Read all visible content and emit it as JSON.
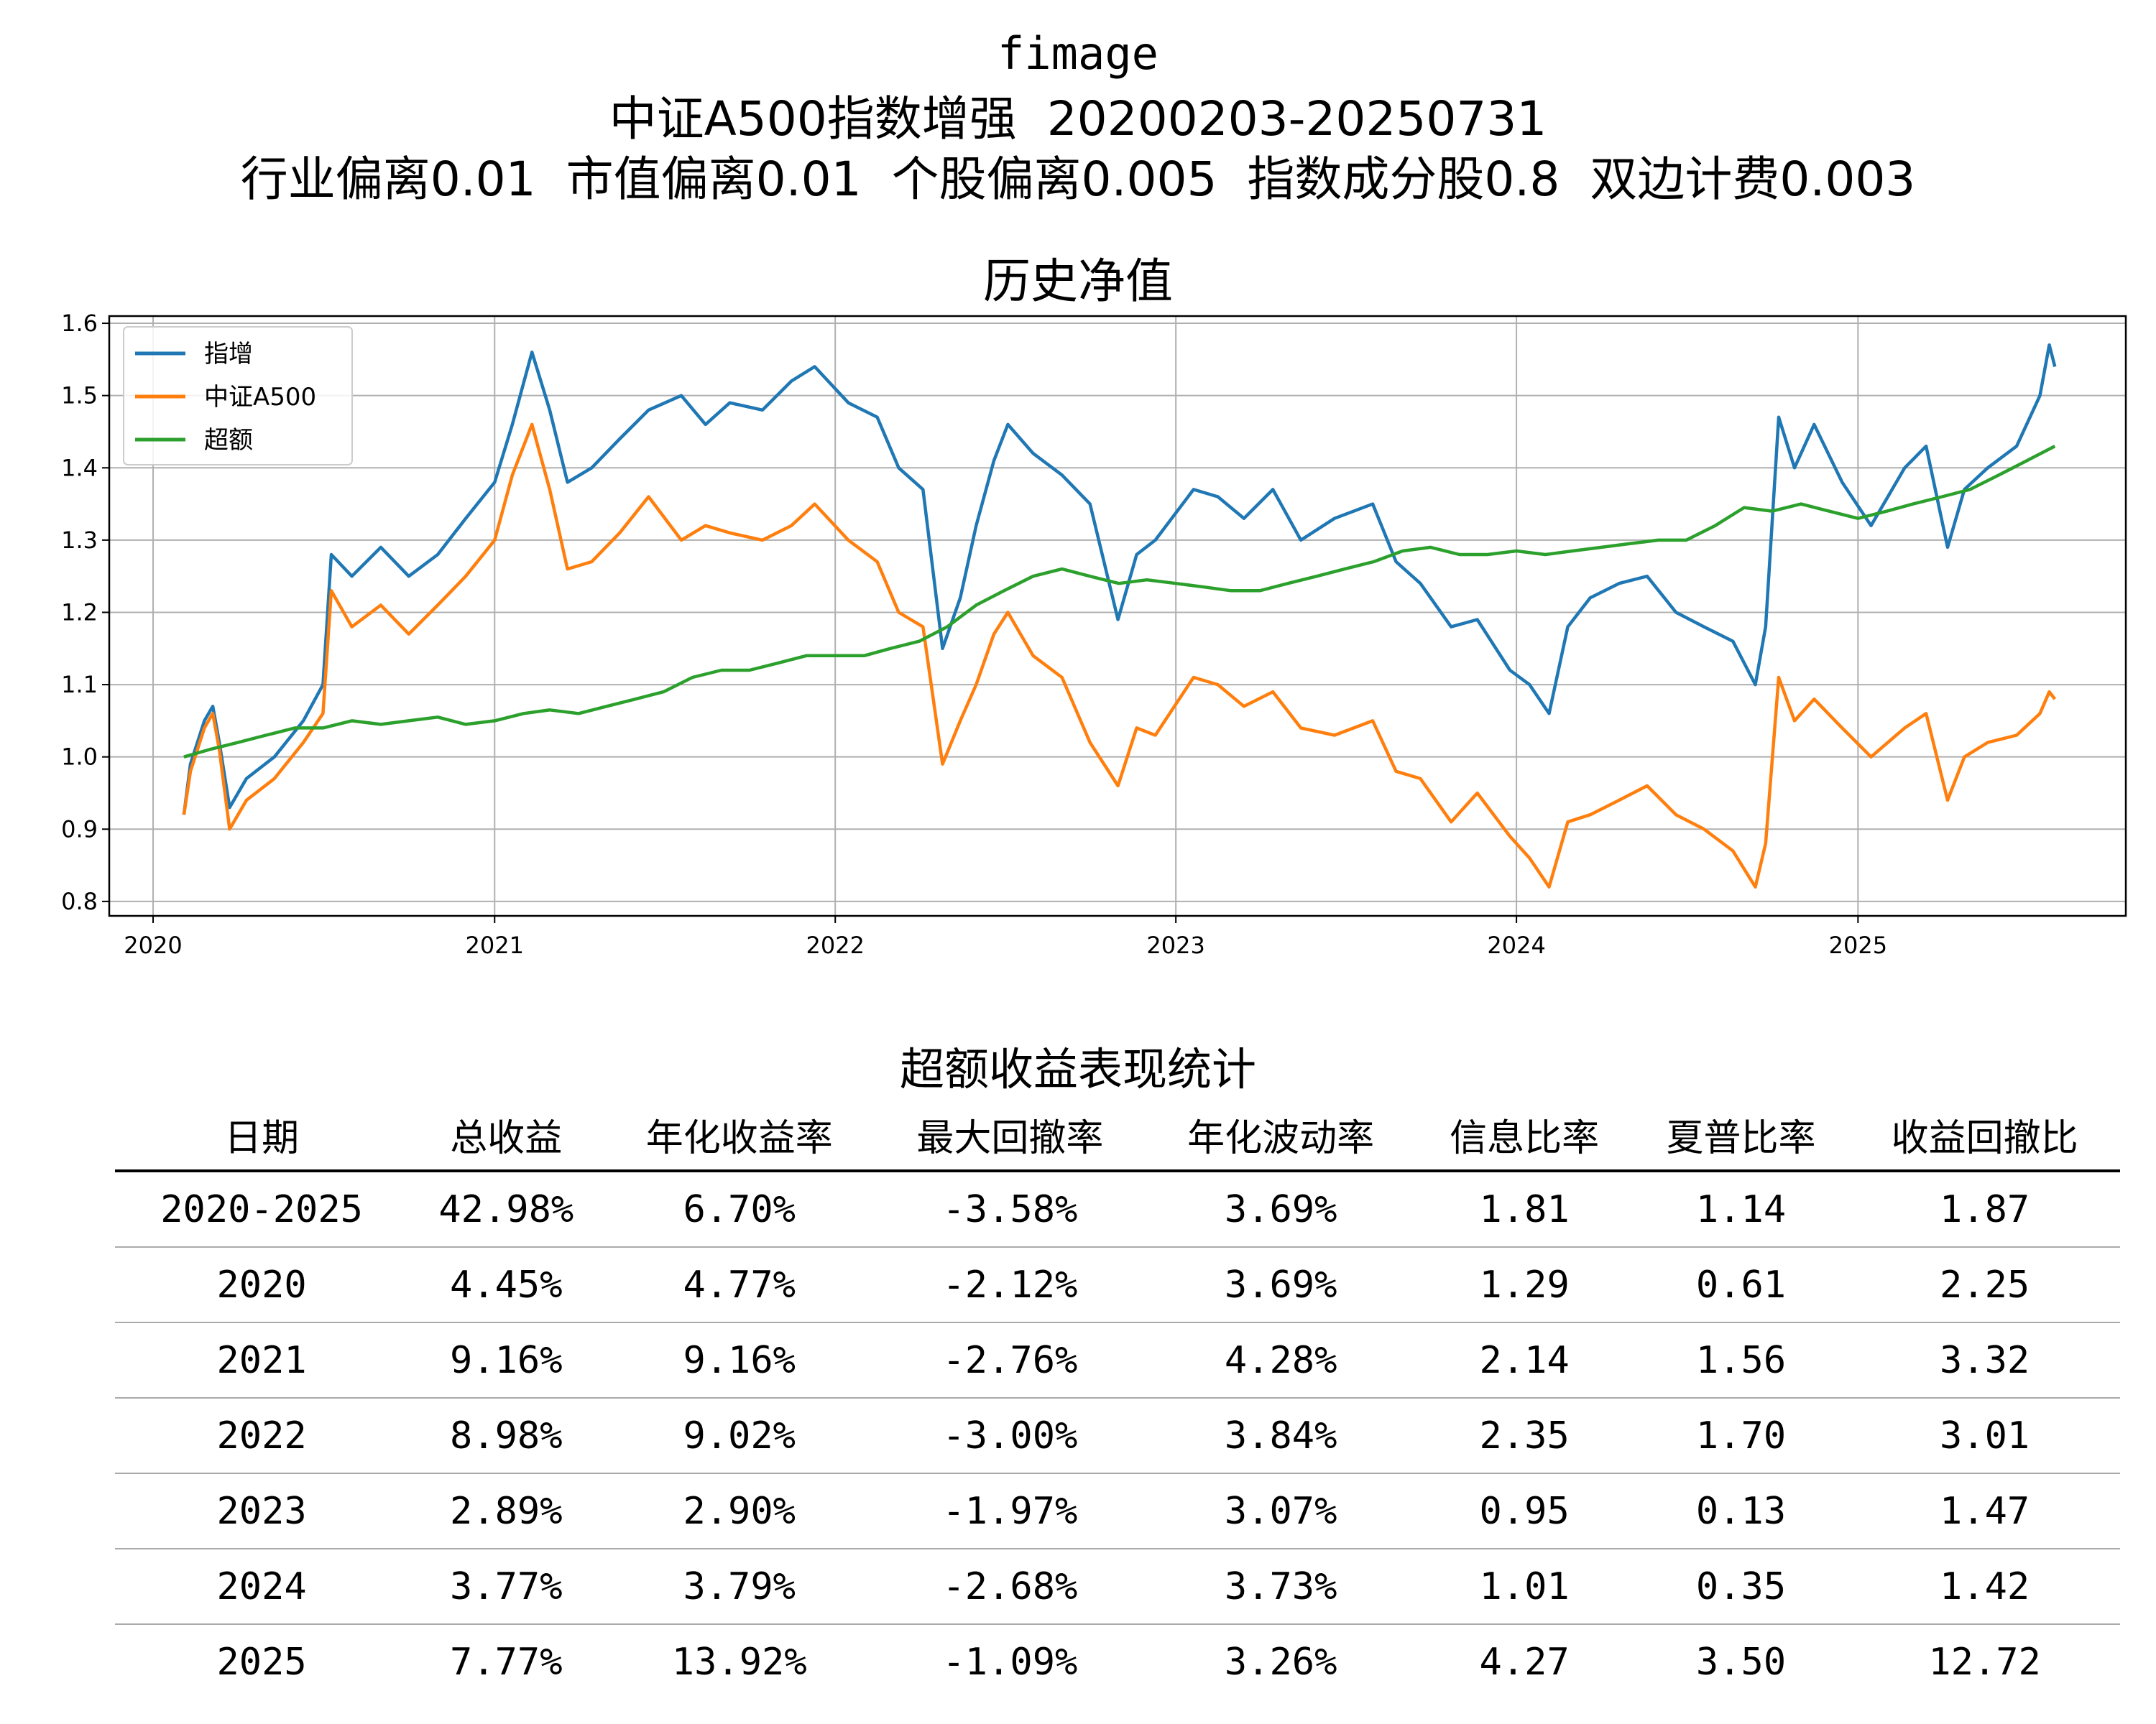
{
  "header": {
    "line1": "fimage",
    "line2": "中证A500指数增强  20200203-20250731",
    "line3": "行业偏离0.01  市值偏离0.01  个股偏离0.005  指数成分股0.8  双边计费0.003"
  },
  "chart_data": {
    "type": "line",
    "title": "历史净值",
    "xlabel": "",
    "ylabel": "",
    "x_ticks": [
      "2020",
      "2021",
      "2022",
      "2023",
      "2024",
      "2025"
    ],
    "xlim": [
      "2019-11-15",
      "2025-10-15"
    ],
    "ylim": [
      0.78,
      1.61
    ],
    "y_ticks": [
      0.8,
      0.9,
      1.0,
      1.1,
      1.2,
      1.3,
      1.4,
      1.5,
      1.6
    ],
    "grid": true,
    "legend": "top-left",
    "series": [
      {
        "name": "指增",
        "color": "#1f77b4",
        "points": [
          [
            "2020-02-03",
            0.92
          ],
          [
            "2020-02-10",
            0.99
          ],
          [
            "2020-02-25",
            1.05
          ],
          [
            "2020-03-05",
            1.07
          ],
          [
            "2020-03-12",
            1.02
          ],
          [
            "2020-03-23",
            0.93
          ],
          [
            "2020-04-10",
            0.97
          ],
          [
            "2020-05-10",
            1.0
          ],
          [
            "2020-06-10",
            1.05
          ],
          [
            "2020-07-01",
            1.1
          ],
          [
            "2020-07-10",
            1.28
          ],
          [
            "2020-08-01",
            1.25
          ],
          [
            "2020-09-01",
            1.29
          ],
          [
            "2020-10-01",
            1.25
          ],
          [
            "2020-11-01",
            1.28
          ],
          [
            "2020-12-01",
            1.33
          ],
          [
            "2021-01-01",
            1.38
          ],
          [
            "2021-01-20",
            1.46
          ],
          [
            "2021-02-10",
            1.56
          ],
          [
            "2021-03-01",
            1.48
          ],
          [
            "2021-03-20",
            1.38
          ],
          [
            "2021-04-15",
            1.4
          ],
          [
            "2021-05-15",
            1.44
          ],
          [
            "2021-06-15",
            1.48
          ],
          [
            "2021-07-20",
            1.5
          ],
          [
            "2021-08-15",
            1.46
          ],
          [
            "2021-09-10",
            1.49
          ],
          [
            "2021-10-15",
            1.48
          ],
          [
            "2021-11-15",
            1.52
          ],
          [
            "2021-12-10",
            1.54
          ],
          [
            "2022-01-15",
            1.49
          ],
          [
            "2022-02-15",
            1.47
          ],
          [
            "2022-03-10",
            1.4
          ],
          [
            "2022-04-05",
            1.37
          ],
          [
            "2022-04-26",
            1.15
          ],
          [
            "2022-05-15",
            1.22
          ],
          [
            "2022-06-01",
            1.32
          ],
          [
            "2022-06-20",
            1.41
          ],
          [
            "2022-07-05",
            1.46
          ],
          [
            "2022-08-01",
            1.42
          ],
          [
            "2022-09-01",
            1.39
          ],
          [
            "2022-10-01",
            1.35
          ],
          [
            "2022-10-31",
            1.19
          ],
          [
            "2022-11-20",
            1.28
          ],
          [
            "2022-12-10",
            1.3
          ],
          [
            "2023-01-20",
            1.37
          ],
          [
            "2023-02-15",
            1.36
          ],
          [
            "2023-03-15",
            1.33
          ],
          [
            "2023-04-15",
            1.37
          ],
          [
            "2023-05-15",
            1.3
          ],
          [
            "2023-06-20",
            1.33
          ],
          [
            "2023-07-31",
            1.35
          ],
          [
            "2023-08-25",
            1.27
          ],
          [
            "2023-09-20",
            1.24
          ],
          [
            "2023-10-23",
            1.18
          ],
          [
            "2023-11-20",
            1.19
          ],
          [
            "2023-12-25",
            1.12
          ],
          [
            "2024-01-15",
            1.1
          ],
          [
            "2024-02-05",
            1.06
          ],
          [
            "2024-02-25",
            1.18
          ],
          [
            "2024-03-20",
            1.22
          ],
          [
            "2024-04-20",
            1.24
          ],
          [
            "2024-05-20",
            1.25
          ],
          [
            "2024-06-20",
            1.2
          ],
          [
            "2024-07-20",
            1.18
          ],
          [
            "2024-08-20",
            1.16
          ],
          [
            "2024-09-13",
            1.1
          ],
          [
            "2024-09-24",
            1.18
          ],
          [
            "2024-10-08",
            1.47
          ],
          [
            "2024-10-25",
            1.4
          ],
          [
            "2024-11-15",
            1.46
          ],
          [
            "2024-12-15",
            1.38
          ],
          [
            "2025-01-15",
            1.32
          ],
          [
            "2025-02-20",
            1.4
          ],
          [
            "2025-03-15",
            1.43
          ],
          [
            "2025-04-07",
            1.29
          ],
          [
            "2025-04-25",
            1.37
          ],
          [
            "2025-05-20",
            1.4
          ],
          [
            "2025-06-20",
            1.43
          ],
          [
            "2025-07-15",
            1.5
          ],
          [
            "2025-07-25",
            1.57
          ],
          [
            "2025-07-31",
            1.54
          ]
        ]
      },
      {
        "name": "中证A500",
        "color": "#ff7f0e",
        "points": [
          [
            "2020-02-03",
            0.92
          ],
          [
            "2020-02-10",
            0.98
          ],
          [
            "2020-02-25",
            1.04
          ],
          [
            "2020-03-05",
            1.06
          ],
          [
            "2020-03-12",
            1.01
          ],
          [
            "2020-03-23",
            0.9
          ],
          [
            "2020-04-10",
            0.94
          ],
          [
            "2020-05-10",
            0.97
          ],
          [
            "2020-06-10",
            1.02
          ],
          [
            "2020-07-01",
            1.06
          ],
          [
            "2020-07-10",
            1.23
          ],
          [
            "2020-08-01",
            1.18
          ],
          [
            "2020-09-01",
            1.21
          ],
          [
            "2020-10-01",
            1.17
          ],
          [
            "2020-11-01",
            1.21
          ],
          [
            "2020-12-01",
            1.25
          ],
          [
            "2021-01-01",
            1.3
          ],
          [
            "2021-01-20",
            1.39
          ],
          [
            "2021-02-10",
            1.46
          ],
          [
            "2021-03-01",
            1.37
          ],
          [
            "2021-03-20",
            1.26
          ],
          [
            "2021-04-15",
            1.27
          ],
          [
            "2021-05-15",
            1.31
          ],
          [
            "2021-06-15",
            1.36
          ],
          [
            "2021-07-20",
            1.3
          ],
          [
            "2021-08-15",
            1.32
          ],
          [
            "2021-09-10",
            1.31
          ],
          [
            "2021-10-15",
            1.3
          ],
          [
            "2021-11-15",
            1.32
          ],
          [
            "2021-12-10",
            1.35
          ],
          [
            "2022-01-15",
            1.3
          ],
          [
            "2022-02-15",
            1.27
          ],
          [
            "2022-03-10",
            1.2
          ],
          [
            "2022-04-05",
            1.18
          ],
          [
            "2022-04-26",
            0.99
          ],
          [
            "2022-05-15",
            1.05
          ],
          [
            "2022-06-01",
            1.1
          ],
          [
            "2022-06-20",
            1.17
          ],
          [
            "2022-07-05",
            1.2
          ],
          [
            "2022-08-01",
            1.14
          ],
          [
            "2022-09-01",
            1.11
          ],
          [
            "2022-10-01",
            1.02
          ],
          [
            "2022-10-31",
            0.96
          ],
          [
            "2022-11-20",
            1.04
          ],
          [
            "2022-12-10",
            1.03
          ],
          [
            "2023-01-20",
            1.11
          ],
          [
            "2023-02-15",
            1.1
          ],
          [
            "2023-03-15",
            1.07
          ],
          [
            "2023-04-15",
            1.09
          ],
          [
            "2023-05-15",
            1.04
          ],
          [
            "2023-06-20",
            1.03
          ],
          [
            "2023-07-31",
            1.05
          ],
          [
            "2023-08-25",
            0.98
          ],
          [
            "2023-09-20",
            0.97
          ],
          [
            "2023-10-23",
            0.91
          ],
          [
            "2023-11-20",
            0.95
          ],
          [
            "2023-12-25",
            0.89
          ],
          [
            "2024-01-15",
            0.86
          ],
          [
            "2024-02-05",
            0.82
          ],
          [
            "2024-02-25",
            0.91
          ],
          [
            "2024-03-20",
            0.92
          ],
          [
            "2024-04-20",
            0.94
          ],
          [
            "2024-05-20",
            0.96
          ],
          [
            "2024-06-20",
            0.92
          ],
          [
            "2024-07-20",
            0.9
          ],
          [
            "2024-08-20",
            0.87
          ],
          [
            "2024-09-13",
            0.82
          ],
          [
            "2024-09-24",
            0.88
          ],
          [
            "2024-10-08",
            1.11
          ],
          [
            "2024-10-25",
            1.05
          ],
          [
            "2024-11-15",
            1.08
          ],
          [
            "2024-12-15",
            1.04
          ],
          [
            "2025-01-15",
            1.0
          ],
          [
            "2025-02-20",
            1.04
          ],
          [
            "2025-03-15",
            1.06
          ],
          [
            "2025-04-07",
            0.94
          ],
          [
            "2025-04-25",
            1.0
          ],
          [
            "2025-05-20",
            1.02
          ],
          [
            "2025-06-20",
            1.03
          ],
          [
            "2025-07-15",
            1.06
          ],
          [
            "2025-07-25",
            1.09
          ],
          [
            "2025-07-31",
            1.08
          ]
        ]
      },
      {
        "name": "超额",
        "color": "#2ca02c",
        "points": [
          [
            "2020-02-03",
            1.0
          ],
          [
            "2020-03-01",
            1.01
          ],
          [
            "2020-04-01",
            1.02
          ],
          [
            "2020-05-01",
            1.03
          ],
          [
            "2020-06-01",
            1.04
          ],
          [
            "2020-07-01",
            1.04
          ],
          [
            "2020-08-01",
            1.05
          ],
          [
            "2020-09-01",
            1.045
          ],
          [
            "2020-10-01",
            1.05
          ],
          [
            "2020-11-01",
            1.055
          ],
          [
            "2020-12-01",
            1.045
          ],
          [
            "2021-01-01",
            1.05
          ],
          [
            "2021-02-01",
            1.06
          ],
          [
            "2021-03-01",
            1.065
          ],
          [
            "2021-04-01",
            1.06
          ],
          [
            "2021-05-01",
            1.07
          ],
          [
            "2021-06-01",
            1.08
          ],
          [
            "2021-07-01",
            1.09
          ],
          [
            "2021-08-01",
            1.11
          ],
          [
            "2021-09-01",
            1.12
          ],
          [
            "2021-10-01",
            1.12
          ],
          [
            "2021-11-01",
            1.13
          ],
          [
            "2021-12-01",
            1.14
          ],
          [
            "2022-01-01",
            1.14
          ],
          [
            "2022-02-01",
            1.14
          ],
          [
            "2022-03-01",
            1.15
          ],
          [
            "2022-04-01",
            1.16
          ],
          [
            "2022-05-01",
            1.18
          ],
          [
            "2022-06-01",
            1.21
          ],
          [
            "2022-07-01",
            1.23
          ],
          [
            "2022-08-01",
            1.25
          ],
          [
            "2022-09-01",
            1.26
          ],
          [
            "2022-10-01",
            1.25
          ],
          [
            "2022-11-01",
            1.24
          ],
          [
            "2022-12-01",
            1.245
          ],
          [
            "2023-01-01",
            1.24
          ],
          [
            "2023-02-01",
            1.235
          ],
          [
            "2023-03-01",
            1.23
          ],
          [
            "2023-04-01",
            1.23
          ],
          [
            "2023-05-01",
            1.24
          ],
          [
            "2023-06-01",
            1.25
          ],
          [
            "2023-07-01",
            1.26
          ],
          [
            "2023-08-01",
            1.27
          ],
          [
            "2023-09-01",
            1.285
          ],
          [
            "2023-10-01",
            1.29
          ],
          [
            "2023-11-01",
            1.28
          ],
          [
            "2023-12-01",
            1.28
          ],
          [
            "2024-01-01",
            1.285
          ],
          [
            "2024-02-01",
            1.28
          ],
          [
            "2024-03-01",
            1.285
          ],
          [
            "2024-04-01",
            1.29
          ],
          [
            "2024-05-01",
            1.295
          ],
          [
            "2024-06-01",
            1.3
          ],
          [
            "2024-07-01",
            1.3
          ],
          [
            "2024-08-01",
            1.32
          ],
          [
            "2024-09-01",
            1.345
          ],
          [
            "2024-10-01",
            1.34
          ],
          [
            "2024-11-01",
            1.35
          ],
          [
            "2024-12-01",
            1.34
          ],
          [
            "2025-01-01",
            1.33
          ],
          [
            "2025-02-01",
            1.34
          ],
          [
            "2025-03-01",
            1.35
          ],
          [
            "2025-04-01",
            1.36
          ],
          [
            "2025-05-01",
            1.37
          ],
          [
            "2025-06-01",
            1.39
          ],
          [
            "2025-07-01",
            1.41
          ],
          [
            "2025-07-31",
            1.43
          ]
        ]
      }
    ]
  },
  "table": {
    "title": "超额收益表现统计",
    "headers": [
      "日期",
      "总收益",
      "年化收益率",
      "最大回撤率",
      "年化波动率",
      "信息比率",
      "夏普比率",
      "收益回撤比"
    ],
    "rows": [
      [
        "2020-2025",
        "42.98%",
        "6.70%",
        "-3.58%",
        "3.69%",
        "1.81",
        "1.14",
        "1.87"
      ],
      [
        "2020",
        "4.45%",
        "4.77%",
        "-2.12%",
        "3.69%",
        "1.29",
        "0.61",
        "2.25"
      ],
      [
        "2021",
        "9.16%",
        "9.16%",
        "-2.76%",
        "4.28%",
        "2.14",
        "1.56",
        "3.32"
      ],
      [
        "2022",
        "8.98%",
        "9.02%",
        "-3.00%",
        "3.84%",
        "2.35",
        "1.70",
        "3.01"
      ],
      [
        "2023",
        "2.89%",
        "2.90%",
        "-1.97%",
        "3.07%",
        "0.95",
        "0.13",
        "1.47"
      ],
      [
        "2024",
        "3.77%",
        "3.79%",
        "-2.68%",
        "3.73%",
        "1.01",
        "0.35",
        "1.42"
      ],
      [
        "2025",
        "7.77%",
        "13.92%",
        "-1.09%",
        "3.26%",
        "4.27",
        "3.50",
        "12.72"
      ]
    ]
  }
}
